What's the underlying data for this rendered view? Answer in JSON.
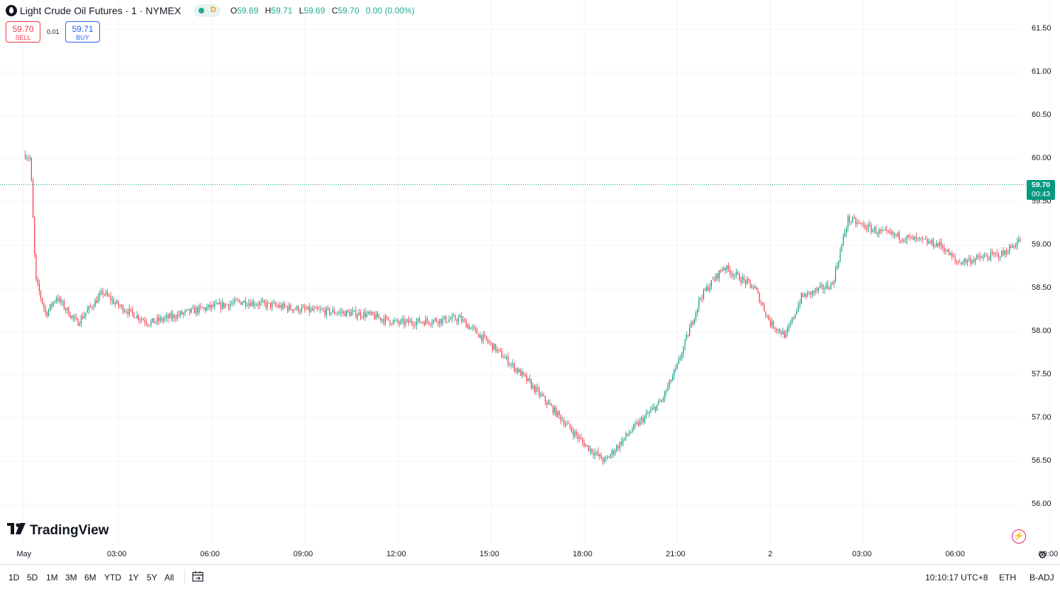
{
  "header": {
    "title": "Light Crude Oil Futures · 1 · NYMEX",
    "status_letter": "D",
    "ohlc": {
      "o_label": "O",
      "o": "59.69",
      "h_label": "H",
      "h": "59.71",
      "l_label": "L",
      "l": "59.69",
      "c_label": "C",
      "c": "59.70",
      "change": "0.00 (0.00%)"
    }
  },
  "trade": {
    "sell_price": "59.70",
    "sell_label": "SELL",
    "spread": "0.01",
    "buy_price": "59.71",
    "buy_label": "BUY"
  },
  "price_axis": [
    "61.50",
    "61.00",
    "60.50",
    "60.00",
    "59.50",
    "59.00",
    "58.50",
    "58.00",
    "57.50",
    "57.00",
    "56.50",
    "56.00"
  ],
  "last_price": {
    "price": "59.70",
    "countdown": "00:43"
  },
  "time_axis": [
    "May",
    "03:00",
    "06:00",
    "09:00",
    "12:00",
    "15:00",
    "18:00",
    "21:00",
    "2",
    "03:00",
    "06:00",
    "09:00"
  ],
  "logo": {
    "text": "TradingView"
  },
  "footer": {
    "ranges": [
      "1D",
      "5D",
      "1M",
      "3M",
      "6M",
      "YTD",
      "1Y",
      "5Y",
      "All"
    ],
    "clock": "10:10:17 UTC+8",
    "session": "ETH",
    "adjust": "B-ADJ"
  },
  "colors": {
    "up": "#089981",
    "down": "#f23645",
    "grid": "#f0f3fa",
    "accent": "#22ab94"
  },
  "icons": [
    "oil-symbol-icon",
    "lightning-icon",
    "settings-icon",
    "calendar-goto-icon"
  ],
  "chart_data": {
    "type": "candlestick",
    "interval": "1 minute",
    "ylim": [
      55.9,
      61.6
    ],
    "x_ticks": [
      "May",
      "03:00",
      "06:00",
      "09:00",
      "12:00",
      "15:00",
      "18:00",
      "21:00",
      "2",
      "03:00",
      "06:00",
      "09:00"
    ],
    "approx_path": [
      {
        "t": "May 1 00:00",
        "price": 60.05
      },
      {
        "t": "May 1 00:10",
        "price": 60.0
      },
      {
        "t": "May 1 00:20",
        "price": 58.6
      },
      {
        "t": "May 1 00:40",
        "price": 58.2
      },
      {
        "t": "May 1 01:00",
        "price": 58.4
      },
      {
        "t": "May 1 01:40",
        "price": 58.1
      },
      {
        "t": "May 1 02:30",
        "price": 58.45
      },
      {
        "t": "May 1 03:00",
        "price": 58.3
      },
      {
        "t": "May 1 04:00",
        "price": 58.1
      },
      {
        "t": "May 1 05:30",
        "price": 58.25
      },
      {
        "t": "May 1 07:00",
        "price": 58.35
      },
      {
        "t": "May 1 09:00",
        "price": 58.25
      },
      {
        "t": "May 1 11:00",
        "price": 58.2
      },
      {
        "t": "May 1 12:00",
        "price": 58.1
      },
      {
        "t": "May 1 14:00",
        "price": 58.15
      },
      {
        "t": "May 1 15:00",
        "price": 57.85
      },
      {
        "t": "May 1 16:00",
        "price": 57.5
      },
      {
        "t": "May 1 17:00",
        "price": 57.1
      },
      {
        "t": "May 1 18:00",
        "price": 56.7
      },
      {
        "t": "May 1 18:40",
        "price": 56.5
      },
      {
        "t": "May 1 19:30",
        "price": 56.85
      },
      {
        "t": "May 1 20:30",
        "price": 57.2
      },
      {
        "t": "May 1 21:00",
        "price": 57.6
      },
      {
        "t": "May 1 21:45",
        "price": 58.4
      },
      {
        "t": "May 1 22:30",
        "price": 58.75
      },
      {
        "t": "May 1 23:30",
        "price": 58.5
      },
      {
        "t": "May 2 00:00",
        "price": 58.1
      },
      {
        "t": "May 2 00:30",
        "price": 57.95
      },
      {
        "t": "May 2 01:00",
        "price": 58.4
      },
      {
        "t": "May 2 02:00",
        "price": 58.55
      },
      {
        "t": "May 2 02:30",
        "price": 59.3
      },
      {
        "t": "May 2 03:30",
        "price": 59.15
      },
      {
        "t": "May 2 05:30",
        "price": 59.0
      },
      {
        "t": "May 2 06:00",
        "price": 58.8
      },
      {
        "t": "May 2 07:30",
        "price": 58.9
      },
      {
        "t": "May 2 08:30",
        "price": 59.2
      },
      {
        "t": "May 2 09:30",
        "price": 59.6
      },
      {
        "t": "May 2 10:10",
        "price": 59.7
      }
    ],
    "last": 59.7
  }
}
